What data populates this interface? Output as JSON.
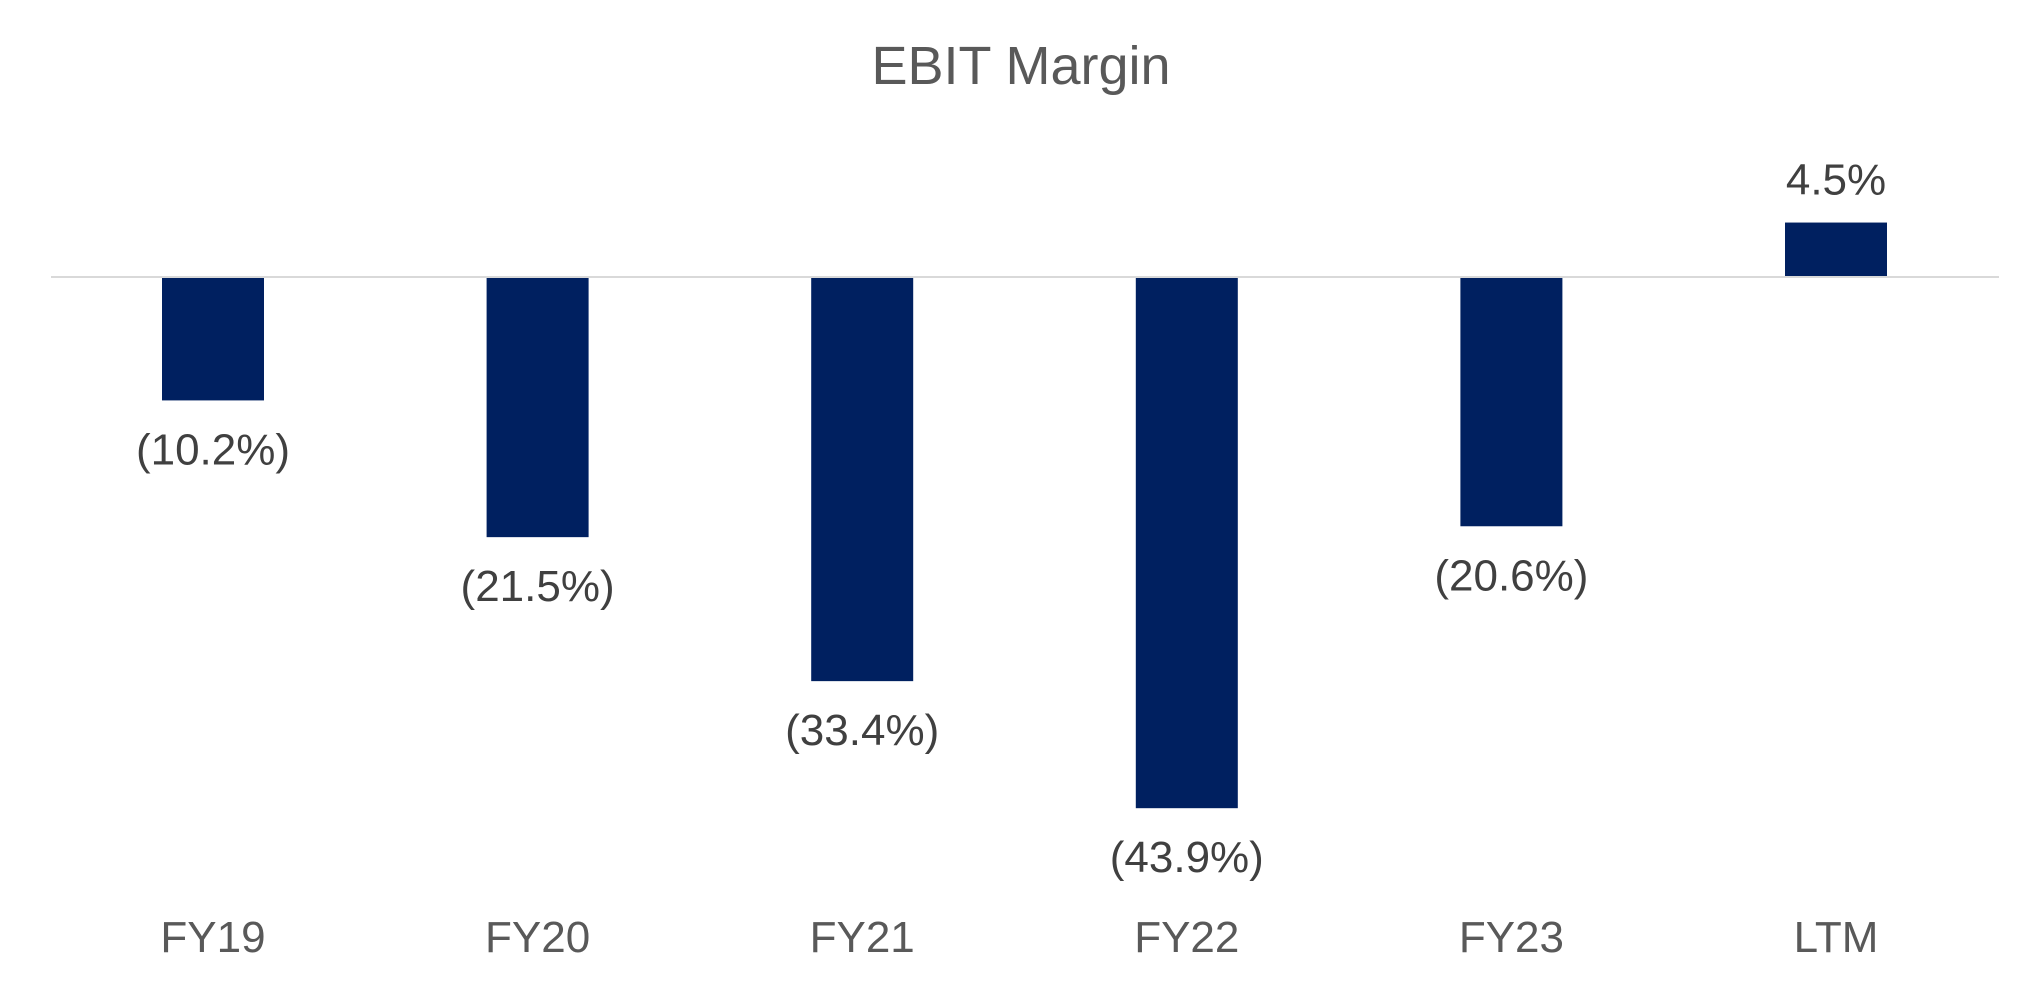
{
  "chart_data": {
    "type": "bar",
    "title": "EBIT Margin",
    "xlabel": "",
    "ylabel": "",
    "categories": [
      "FY19",
      "FY20",
      "FY21",
      "FY22",
      "FY23",
      "LTM"
    ],
    "values": [
      -10.2,
      -21.5,
      -33.4,
      -43.9,
      -20.6,
      4.5
    ],
    "data_labels": [
      "(10.2%)",
      "(21.5%)",
      "(33.4%)",
      "(43.9%)",
      "(20.6%)",
      "4.5%"
    ],
    "ylim": [
      -45,
      6
    ],
    "grid": false,
    "legend": "none",
    "bar_color": "#002060",
    "baseline_color": "#d9d9d9"
  }
}
